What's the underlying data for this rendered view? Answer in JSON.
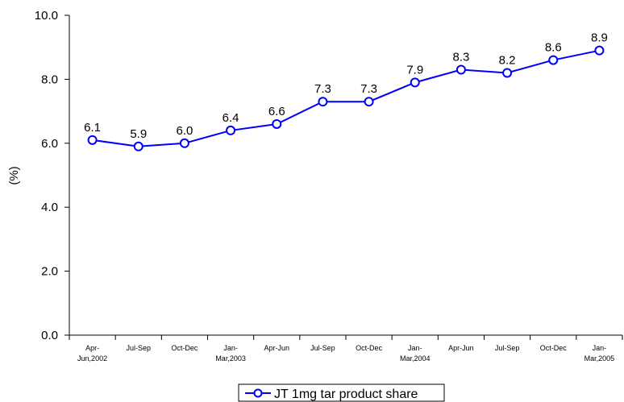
{
  "chart_data": {
    "type": "line",
    "categories": [
      [
        "Apr-",
        "Jun,2002"
      ],
      [
        "Jul-Sep"
      ],
      [
        "Oct-Dec"
      ],
      [
        "Jan-",
        "Mar,2003"
      ],
      [
        "Apr-Jun"
      ],
      [
        "Jul-Sep"
      ],
      [
        "Oct-Dec"
      ],
      [
        "Jan-",
        "Mar,2004"
      ],
      [
        "Apr-Jun"
      ],
      [
        "Jul-Sep"
      ],
      [
        "Oct-Dec"
      ],
      [
        "Jan-",
        "Mar,2005"
      ]
    ],
    "series": [
      {
        "name": "JT 1mg tar product share",
        "values": [
          6.1,
          5.9,
          6.0,
          6.4,
          6.6,
          7.3,
          7.3,
          7.9,
          8.3,
          8.2,
          8.6,
          8.9
        ],
        "labels": [
          "6.1",
          "5.9",
          "6.0",
          "6.4",
          "6.6",
          "7.3",
          "7.3",
          "7.9",
          "8.3",
          "8.2",
          "8.6",
          "8.9"
        ],
        "color": "#0000ff"
      }
    ],
    "ylabel": "(%)",
    "xlabel": "",
    "ylim": [
      0,
      10
    ],
    "yticks": [
      0,
      2,
      4,
      6,
      8,
      10
    ],
    "ytick_labels": [
      "0.0",
      "2.0",
      "4.0",
      "6.0",
      "8.0",
      "10.0"
    ],
    "grid": false,
    "legend_position": "bottom-center",
    "axis_color": "#000000"
  }
}
